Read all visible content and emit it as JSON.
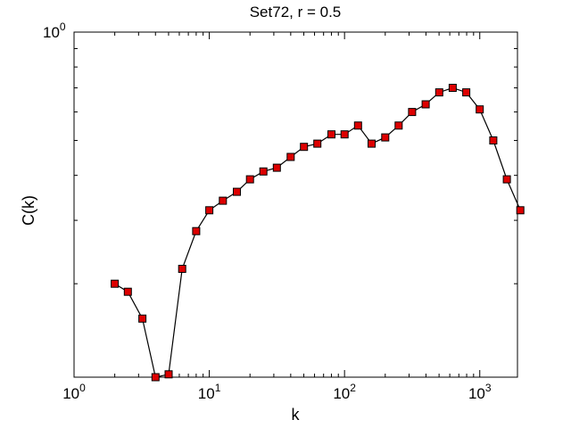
{
  "chart_data": {
    "type": "line",
    "title": "Set72, r = 0.5",
    "xlabel": "k",
    "ylabel": "C(k)",
    "xscale": "log",
    "yscale": "log",
    "xlim": [
      1,
      1900
    ],
    "ylim": [
      0.11,
      1
    ],
    "x_ticks": [
      {
        "value": 1,
        "base": "10",
        "exp": "0"
      },
      {
        "value": 10,
        "base": "10",
        "exp": "1"
      },
      {
        "value": 100,
        "base": "10",
        "exp": "2"
      },
      {
        "value": 1000,
        "base": "10",
        "exp": "3"
      }
    ],
    "y_ticks": [
      {
        "value": 1,
        "base": "10",
        "exp": "0"
      }
    ],
    "grid": false,
    "legend": "none",
    "marker": "square",
    "colors": {
      "line": "#000000",
      "marker_fill": "#dd0000",
      "marker_edge": "#000000"
    },
    "series": [
      {
        "x": [
          2,
          2.5,
          3.2,
          4.0,
          5.0,
          6.3,
          8.0,
          10.0,
          12.6,
          16.0,
          20.0,
          25.1,
          31.6,
          40.0,
          50.1,
          63.0,
          80.0,
          100.0,
          125.9,
          158.5,
          200.0,
          251.2,
          316.2,
          398.1,
          501.2,
          631.0,
          794.3,
          1000.0,
          1258.9,
          1584.9,
          1995.3
        ],
        "y": [
          0.2,
          0.19,
          0.16,
          0.11,
          0.112,
          0.22,
          0.28,
          0.32,
          0.34,
          0.36,
          0.39,
          0.41,
          0.42,
          0.45,
          0.48,
          0.49,
          0.52,
          0.52,
          0.55,
          0.49,
          0.51,
          0.55,
          0.6,
          0.63,
          0.68,
          0.7,
          0.68,
          0.61,
          0.5,
          0.39,
          0.32
        ]
      }
    ]
  }
}
